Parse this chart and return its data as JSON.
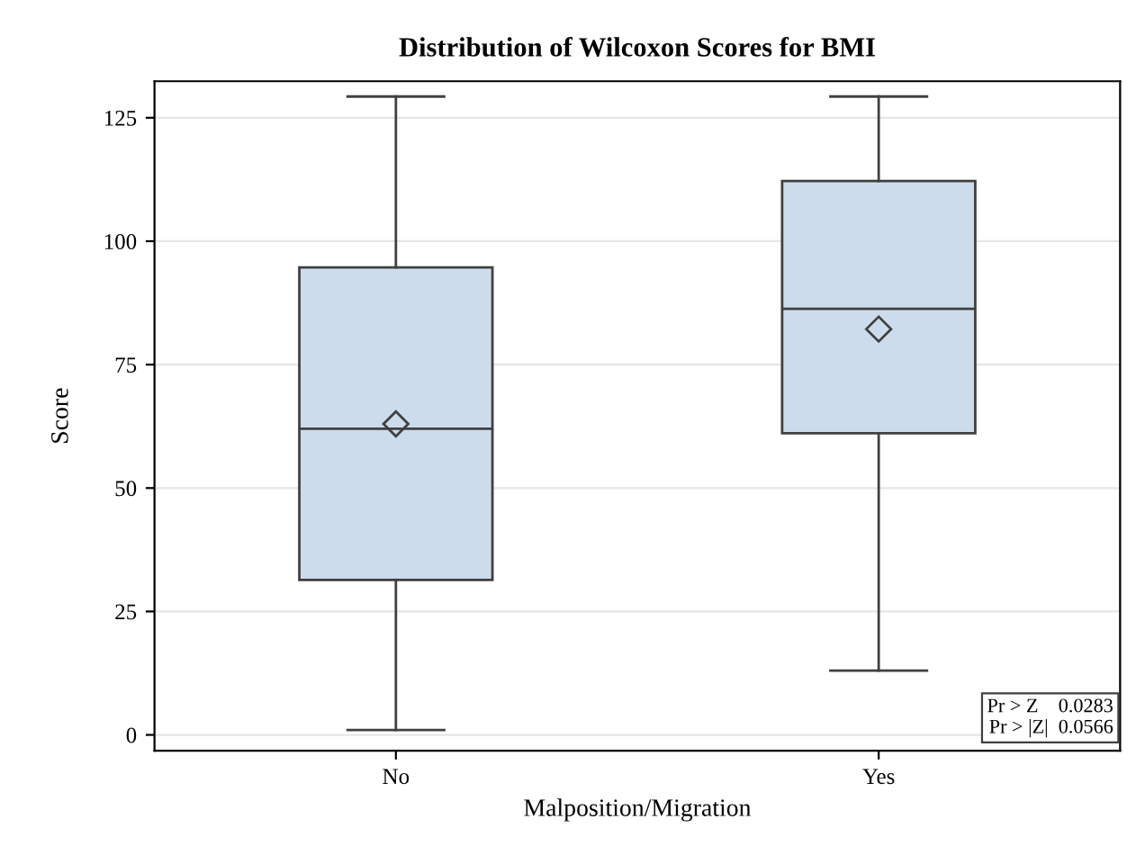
{
  "chart_data": {
    "type": "box",
    "title": "Distribution of Wilcoxon Scores for BMI",
    "xlabel": "Malposition/Migration",
    "ylabel": "Score",
    "categories": [
      "No",
      "Yes"
    ],
    "boxes": [
      {
        "low": 1,
        "q1": 31.4,
        "median": 62,
        "q3": 94.7,
        "high": 129.3,
        "mean": 63
      },
      {
        "low": 13,
        "q1": 61.1,
        "median": 86.3,
        "q3": 112.2,
        "high": 129.3,
        "mean": 82.2
      }
    ],
    "color": "#cddcec",
    "ylim": [
      -3.2,
      132.4
    ],
    "yticks": [
      0,
      25,
      50,
      75,
      100,
      125
    ],
    "grid": "y",
    "annotations": [
      "Pr > Z    0.0283",
      "Pr > |Z|  0.0566"
    ]
  }
}
